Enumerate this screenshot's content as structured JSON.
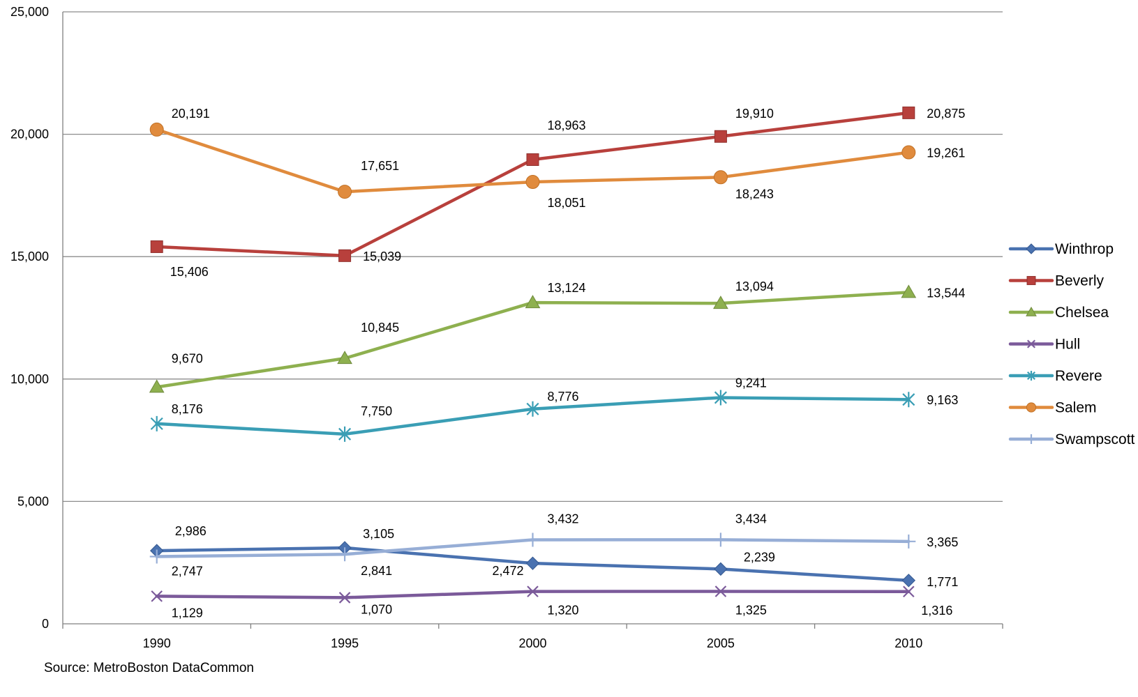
{
  "chart_data": {
    "type": "line",
    "x": [
      "1990",
      "1995",
      "2000",
      "2005",
      "2010"
    ],
    "ylim": [
      0,
      25000
    ],
    "yticks": [
      0,
      5000,
      10000,
      15000,
      20000,
      25000
    ],
    "ytick_labels": [
      "0",
      "5,000",
      "10,000",
      "15,000",
      "20,000",
      "25,000"
    ],
    "grid": "horizontal",
    "legend_position": "right",
    "series": [
      {
        "name": "Winthrop",
        "color": "#4a72b0",
        "marker": "diamond",
        "values": [
          2986,
          3105,
          2472,
          2239,
          1771
        ],
        "labels": [
          "2,986",
          "3,105",
          "2,472",
          "2,239",
          "1,771"
        ]
      },
      {
        "name": "Beverly",
        "color": "#b8403c",
        "marker": "square",
        "values": [
          15406,
          15039,
          18963,
          19910,
          20875
        ],
        "labels": [
          "15,406",
          "15,039",
          "18,963",
          "19,910",
          "20,875"
        ]
      },
      {
        "name": "Chelsea",
        "color": "#8eb04f",
        "marker": "triangle",
        "values": [
          9670,
          10845,
          13124,
          13094,
          13544
        ],
        "labels": [
          "9,670",
          "10,845",
          "13,124",
          "13,094",
          "13,544"
        ]
      },
      {
        "name": "Hull",
        "color": "#7b5a9a",
        "marker": "x",
        "values": [
          1129,
          1070,
          1320,
          1325,
          1316
        ],
        "labels": [
          "1,129",
          "1,070",
          "1,320",
          "1,325",
          "1,316"
        ]
      },
      {
        "name": "Revere",
        "color": "#3a9eb5",
        "marker": "asterisk",
        "values": [
          8176,
          7750,
          8776,
          9241,
          9163
        ],
        "labels": [
          "8,176",
          "7,750",
          "8,776",
          "9,241",
          "9,163"
        ]
      },
      {
        "name": "Salem",
        "color": "#e08b3d",
        "marker": "circle",
        "values": [
          20191,
          17651,
          18051,
          18243,
          19261
        ],
        "labels": [
          "20,191",
          "17,651",
          "18,051",
          "18,243",
          "19,261"
        ]
      },
      {
        "name": "Swampscott",
        "color": "#97aed6",
        "marker": "plus",
        "values": [
          2747,
          2841,
          3432,
          3434,
          3365
        ],
        "labels": [
          "2,747",
          "2,841",
          "3,432",
          "3,434",
          "3,365"
        ]
      }
    ]
  },
  "source": "Source:  MetroBoston DataCommon"
}
